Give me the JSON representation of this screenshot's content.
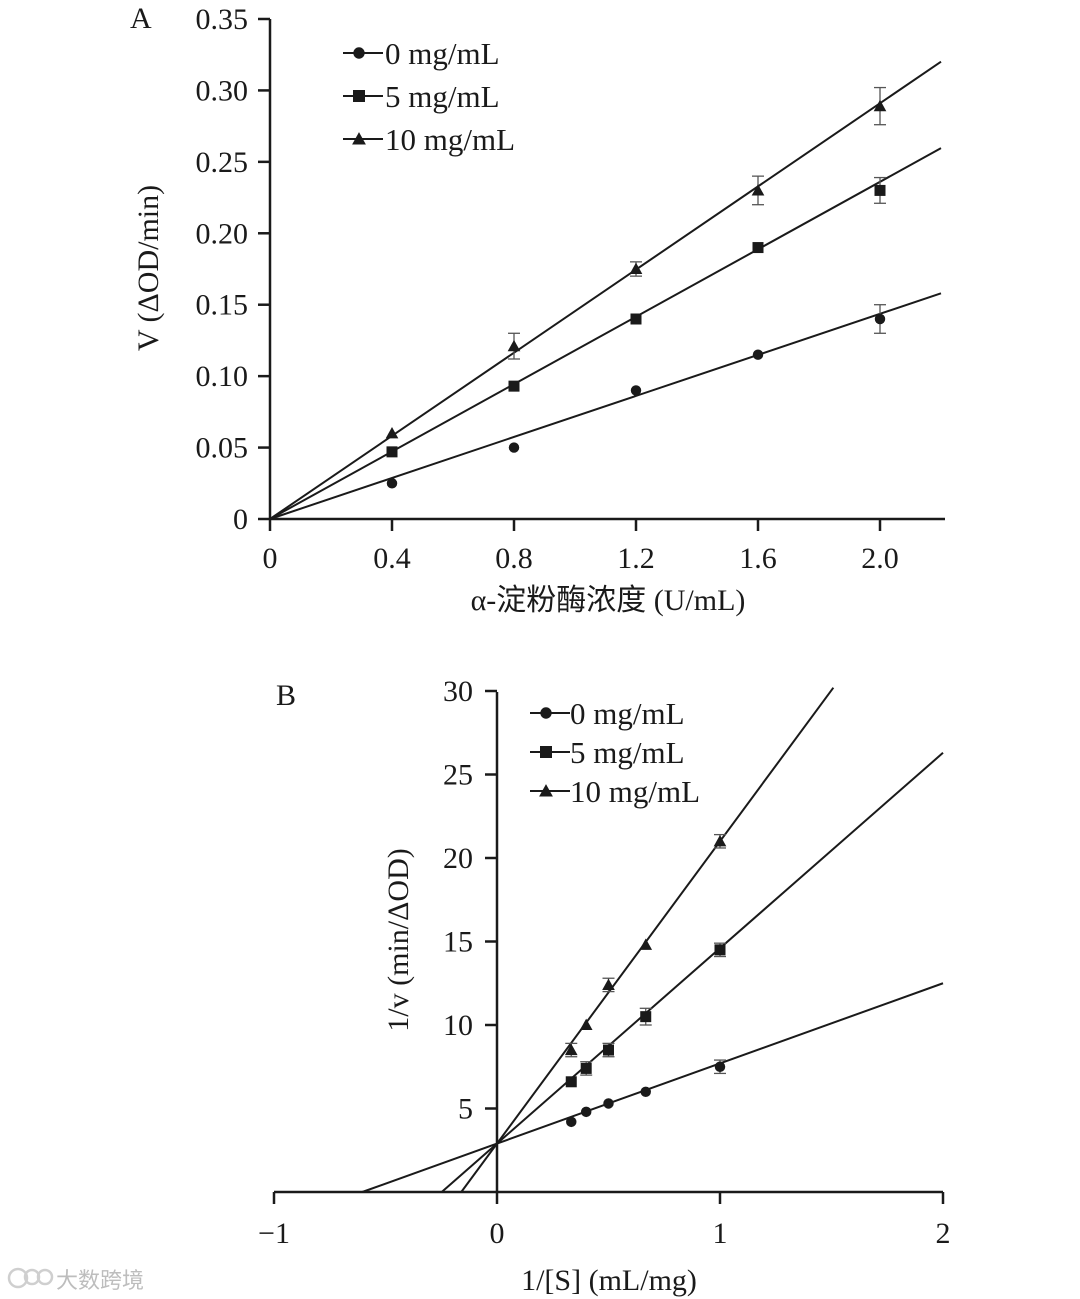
{
  "chart_data": [
    {
      "panel": "A",
      "type": "scatter",
      "ylabel": "V (ΔOD/min)",
      "xlabel": "α-淀粉酶浓度 (U/mL)",
      "xlim": [
        0,
        2.2
      ],
      "ylim": [
        0,
        0.35
      ],
      "xticks": [
        0,
        0.4,
        0.8,
        1.2,
        1.6,
        2.0
      ],
      "xtick_labels": [
        "0",
        "0.4",
        "0.8",
        "1.2",
        "1.6",
        "2.0"
      ],
      "yticks": [
        0,
        0.05,
        0.1,
        0.15,
        0.2,
        0.25,
        0.3,
        0.35
      ],
      "ytick_labels": [
        "0",
        "0.05",
        "0.10",
        "0.15",
        "0.20",
        "0.25",
        "0.30",
        "0.35"
      ],
      "legend_position": "top-left",
      "series": [
        {
          "name": "0 mg/mL",
          "marker": "circle",
          "x": [
            0.4,
            0.8,
            1.2,
            1.6,
            2.0
          ],
          "y": [
            0.025,
            0.05,
            0.09,
            0.115,
            0.14
          ],
          "err": [
            0,
            0,
            0,
            0,
            0.01
          ],
          "fit_slope": 0.0718,
          "fit_intercept": 0
        },
        {
          "name": "5 mg/mL",
          "marker": "square",
          "x": [
            0.4,
            0.8,
            1.2,
            1.6,
            2.0
          ],
          "y": [
            0.047,
            0.093,
            0.14,
            0.19,
            0.23
          ],
          "err": [
            0,
            0,
            0,
            0,
            0.009
          ],
          "fit_slope": 0.118,
          "fit_intercept": 0
        },
        {
          "name": "10 mg/mL",
          "marker": "triangle",
          "x": [
            0.4,
            0.8,
            1.2,
            1.6,
            2.0
          ],
          "y": [
            0.06,
            0.121,
            0.175,
            0.23,
            0.289
          ],
          "err": [
            0,
            0.009,
            0.005,
            0.01,
            0.013
          ],
          "fit_slope": 0.1455,
          "fit_intercept": 0
        }
      ]
    },
    {
      "panel": "B",
      "type": "scatter",
      "ylabel": "1/v (min/ΔOD)",
      "xlabel": "1/[S] (mL/mg)",
      "xlim": [
        -1,
        2
      ],
      "ylim": [
        0,
        30
      ],
      "xticks": [
        -1,
        0,
        1,
        2
      ],
      "xtick_labels": [
        "−1",
        "0",
        "1",
        "2"
      ],
      "yticks": [
        5,
        10,
        15,
        20,
        25,
        30
      ],
      "ytick_labels": [
        "5",
        "10",
        "15",
        "20",
        "25",
        "30"
      ],
      "legend_position": "top-center",
      "series": [
        {
          "name": "0 mg/mL",
          "marker": "circle",
          "x": [
            0.333,
            0.4,
            0.5,
            0.667,
            1.0
          ],
          "y": [
            4.2,
            4.8,
            5.3,
            6.0,
            7.5
          ],
          "err": [
            0,
            0,
            0,
            0,
            0.4
          ],
          "fit_slope": 4.8,
          "fit_intercept": 2.9
        },
        {
          "name": "5 mg/mL",
          "marker": "square",
          "x": [
            0.333,
            0.4,
            0.5,
            0.667,
            1.0
          ],
          "y": [
            6.6,
            7.4,
            8.5,
            10.5,
            14.5
          ],
          "err": [
            0,
            0.4,
            0.4,
            0.5,
            0.4
          ],
          "fit_slope": 11.7,
          "fit_intercept": 2.9
        },
        {
          "name": "10 mg/mL",
          "marker": "triangle",
          "x": [
            0.333,
            0.4,
            0.5,
            0.667,
            1.0
          ],
          "y": [
            8.5,
            10.0,
            12.4,
            14.8,
            21.0
          ],
          "err": [
            0.4,
            0,
            0.4,
            0,
            0.4
          ],
          "fit_slope": 18.1,
          "fit_intercept": 2.9
        }
      ]
    }
  ],
  "watermark": "大数跨境",
  "watermark_icon": "weibo-style-logo-icon"
}
